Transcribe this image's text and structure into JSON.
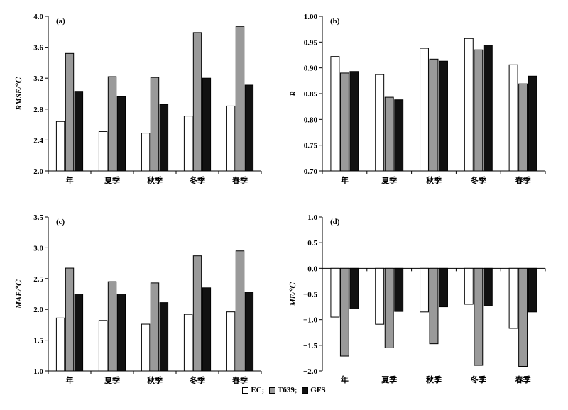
{
  "colors": {
    "EC": "#ffffff",
    "T639": "#9a9a9a",
    "GFS": "#111111",
    "stroke": "#000000"
  },
  "legend": [
    {
      "key": "EC",
      "label": "EC;"
    },
    {
      "key": "T639",
      "label": "T639;"
    },
    {
      "key": "GFS",
      "label": "GFS"
    }
  ],
  "chart_data": [
    {
      "panel_label": "(a)",
      "type": "bar",
      "ylabel": "RMSE/℃",
      "ylim": [
        2.0,
        4.0
      ],
      "yticks": [
        "2.0",
        "2.4",
        "2.8",
        "3.2",
        "3.6",
        "4.0"
      ],
      "categories": [
        "年",
        "夏季",
        "秋季",
        "冬季",
        "春季"
      ],
      "series": [
        {
          "name": "EC",
          "values": [
            2.64,
            2.51,
            2.49,
            2.71,
            2.84
          ]
        },
        {
          "name": "T639",
          "values": [
            3.52,
            3.22,
            3.21,
            3.79,
            3.87
          ]
        },
        {
          "name": "GFS",
          "values": [
            3.03,
            2.96,
            2.86,
            3.2,
            3.11
          ]
        }
      ]
    },
    {
      "panel_label": "(b)",
      "type": "bar",
      "ylabel": "R",
      "ylim": [
        0.7,
        1.0
      ],
      "yticks": [
        "0.70",
        "0.75",
        "0.80",
        "0.85",
        "0.90",
        "0.95",
        "1.00"
      ],
      "categories": [
        "年",
        "夏季",
        "秋季",
        "冬季",
        "春季"
      ],
      "series": [
        {
          "name": "EC",
          "values": [
            0.922,
            0.887,
            0.938,
            0.957,
            0.906
          ]
        },
        {
          "name": "T639",
          "values": [
            0.89,
            0.843,
            0.917,
            0.935,
            0.869
          ]
        },
        {
          "name": "GFS",
          "values": [
            0.893,
            0.838,
            0.913,
            0.944,
            0.884
          ]
        }
      ]
    },
    {
      "panel_label": "(c)",
      "type": "bar",
      "ylabel": "MAE/℃",
      "ylim": [
        1.0,
        3.5
      ],
      "yticks": [
        "1.0",
        "1.5",
        "2.0",
        "2.5",
        "3.0",
        "3.5"
      ],
      "categories": [
        "年",
        "夏季",
        "秋季",
        "冬季",
        "春季"
      ],
      "series": [
        {
          "name": "EC",
          "values": [
            1.86,
            1.82,
            1.76,
            1.92,
            1.96
          ]
        },
        {
          "name": "T639",
          "values": [
            2.67,
            2.45,
            2.43,
            2.87,
            2.95
          ]
        },
        {
          "name": "GFS",
          "values": [
            2.25,
            2.25,
            2.11,
            2.35,
            2.28
          ]
        }
      ]
    },
    {
      "panel_label": "(d)",
      "type": "bar",
      "ylabel": "ME/℃",
      "ylim": [
        -2.0,
        1.0
      ],
      "yticks": [
        "-2.0",
        "-1.5",
        "-1.0",
        "-0.5",
        "0.0",
        "0.5",
        "1.0"
      ],
      "categories": [
        "年",
        "夏季",
        "秋季",
        "冬季",
        "春季"
      ],
      "series": [
        {
          "name": "EC",
          "values": [
            -0.95,
            -1.09,
            -0.85,
            -0.7,
            -1.17
          ]
        },
        {
          "name": "T639",
          "values": [
            -1.71,
            -1.55,
            -1.47,
            -1.89,
            -1.91
          ]
        },
        {
          "name": "GFS",
          "values": [
            -0.79,
            -0.84,
            -0.75,
            -0.73,
            -0.85
          ]
        }
      ]
    }
  ]
}
